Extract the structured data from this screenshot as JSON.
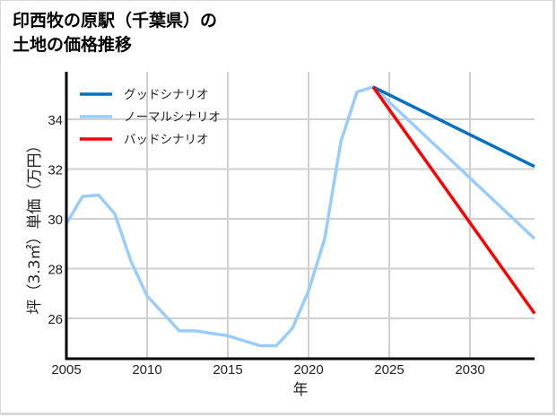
{
  "title": {
    "line1": "印西牧の原駅（千葉県）の",
    "line2": "土地の価格推移"
  },
  "chart_data": {
    "type": "line",
    "title": "印西牧の原駅（千葉県）の土地の価格推移",
    "xlabel": "年",
    "ylabel": "坪（3.3㎡）単価（万円）",
    "xlim": [
      2005,
      2034
    ],
    "ylim": [
      24.5,
      35.8
    ],
    "xticks": [
      2005,
      2010,
      2015,
      2020,
      2025,
      2030
    ],
    "yticks": [
      26,
      28,
      30,
      32,
      34
    ],
    "grid": true,
    "legend_position": "upper left",
    "series": [
      {
        "name": "グッドシナリオ",
        "color": "#0070c0",
        "x": [
          2024,
          2034
        ],
        "values": [
          35.3,
          32.1
        ]
      },
      {
        "name": "ノーマルシナリオ",
        "color": "#99ccff",
        "x": [
          2005,
          2006,
          2007,
          2008,
          2009,
          2010,
          2011,
          2012,
          2013,
          2014,
          2015,
          2016,
          2017,
          2018,
          2019,
          2020,
          2021,
          2022,
          2023,
          2024,
          2034
        ],
        "values": [
          29.8,
          30.9,
          30.95,
          30.2,
          28.3,
          26.9,
          26.2,
          25.5,
          25.5,
          25.4,
          25.3,
          25.1,
          24.9,
          24.9,
          25.6,
          27.1,
          29.2,
          33.1,
          35.1,
          35.3,
          29.2
        ]
      },
      {
        "name": "バッドシナリオ",
        "color": "#ff0000",
        "x": [
          2024,
          2034
        ],
        "values": [
          35.3,
          26.2
        ]
      }
    ]
  }
}
